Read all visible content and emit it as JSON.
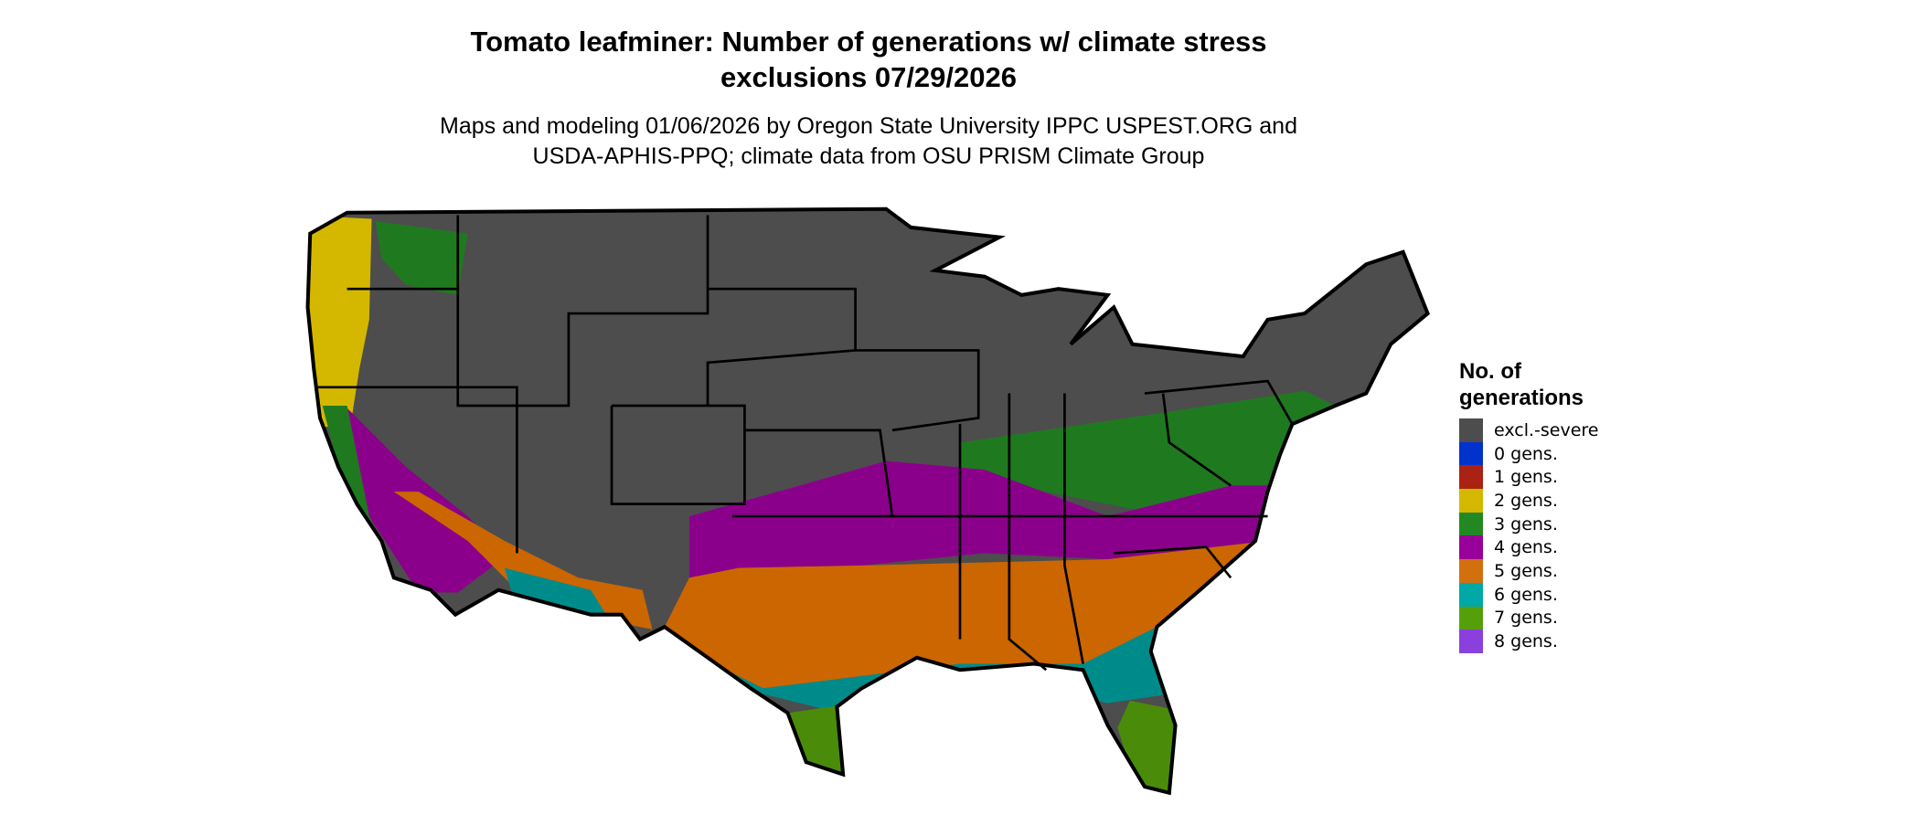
{
  "title": {
    "line1": "Tomato leafminer: Number of generations w/ climate stress",
    "line2": "exclusions 07/29/2026"
  },
  "subtitle": {
    "line1": "Maps and modeling 01/06/2026 by Oregon State University IPPC USPEST.ORG and",
    "line2": "USDA-APHIS-PPQ; climate data from OSU PRISM Climate Group"
  },
  "legend": {
    "title_line1": "No. of",
    "title_line2": "generations",
    "items": [
      {
        "label": "excl.-severe",
        "color": "#4d4d4d"
      },
      {
        "label": "0 gens.",
        "color": "#0033cc"
      },
      {
        "label": "1 gens.",
        "color": "#aa2211"
      },
      {
        "label": "2 gens.",
        "color": "#d4b800"
      },
      {
        "label": "3 gens.",
        "color": "#228822"
      },
      {
        "label": "4 gens.",
        "color": "#990099"
      },
      {
        "label": "5 gens.",
        "color": "#d2700f"
      },
      {
        "label": "6 gens.",
        "color": "#00a8a8"
      },
      {
        "label": "7 gens.",
        "color": "#55a00a"
      },
      {
        "label": "8 gens.",
        "color": "#8a40dd"
      }
    ]
  }
}
